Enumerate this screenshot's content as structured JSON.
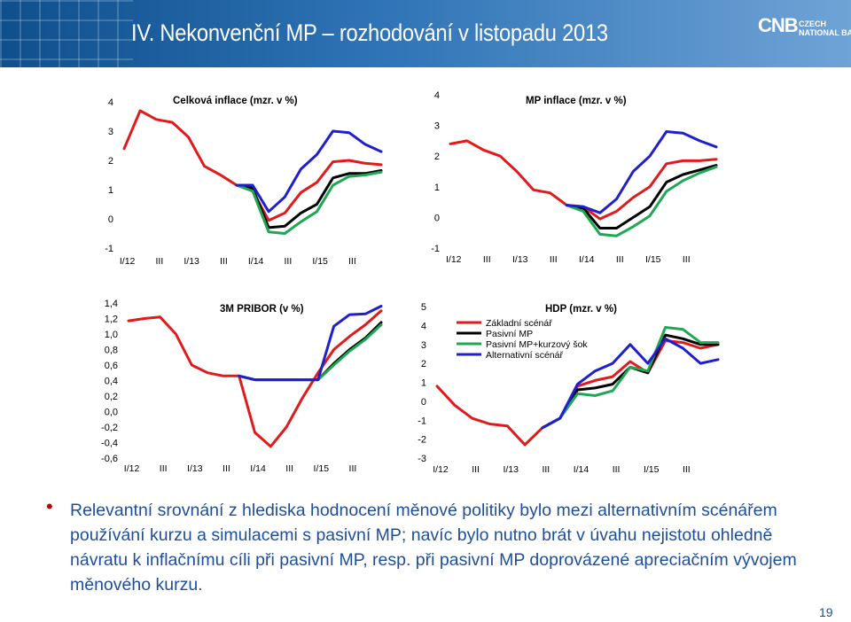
{
  "slide": {
    "title": "IV. Nekonvenční MP – rozhodování v listopadu 2013",
    "logo_mark": "CNB",
    "logo_line1": "CZECH",
    "logo_line2": "NATIONAL BANK",
    "body_text": "Relevantní srovnání z hlediska hodnocení měnové politiky bylo mezi alternativním scénářem používání kurzu a simulacemi s pasivní MP; navíc bylo nutno brát v úvahu nejistotu ohledně návratu k inflačnímu cíli při pasivní MP, resp. při pasivní MP doprovázené apreciačním vývojem měnového kurzu.",
    "page_number": "19",
    "colors": {
      "red": "#e31a1c",
      "black": "#000000",
      "green": "#1ea854",
      "blue": "#1f1fcf",
      "accent": "#c00000",
      "text": "#1f4e99"
    }
  },
  "chart_data": [
    {
      "type": "line",
      "title": "Celková inflace (mzr. v %)",
      "ylim": [
        -1,
        4
      ],
      "yticks": [
        "4",
        "3",
        "2",
        "1",
        "0",
        "-1"
      ],
      "xticks": [
        "I/12",
        "III",
        "I/13",
        "III",
        "I/14",
        "III",
        "I/15",
        "III"
      ],
      "x_start": "I/12",
      "series": [
        {
          "color": "red",
          "values": [
            2.4,
            3.7,
            3.4,
            3.3,
            2.8,
            1.8,
            1.5,
            1.15,
            0.95,
            -0.05,
            0.2,
            0.9,
            1.25,
            1.95,
            2.0,
            1.9,
            1.85
          ]
        },
        {
          "color": "black",
          "offset": 7,
          "values": [
            1.15,
            1.05,
            -0.3,
            -0.25,
            0.2,
            0.5,
            1.4,
            1.55,
            1.55,
            1.65
          ]
        },
        {
          "color": "green",
          "offset": 7,
          "values": [
            1.15,
            0.95,
            -0.45,
            -0.5,
            -0.1,
            0.25,
            1.15,
            1.45,
            1.5,
            1.6
          ]
        },
        {
          "color": "blue",
          "offset": 7,
          "values": [
            1.15,
            1.15,
            0.25,
            0.75,
            1.7,
            2.2,
            3.0,
            2.95,
            2.55,
            2.3
          ]
        }
      ]
    },
    {
      "type": "line",
      "title": "MP inflace (mzr. v %)",
      "ylim": [
        -1,
        4
      ],
      "yticks": [
        "4",
        "3",
        "2",
        "1",
        "0",
        "-1"
      ],
      "xticks": [
        "I/12",
        "III",
        "I/13",
        "III",
        "I/14",
        "III",
        "I/15",
        "III"
      ],
      "x_start": "I/12",
      "series": [
        {
          "color": "red",
          "values": [
            2.4,
            2.5,
            2.2,
            2.0,
            1.5,
            0.9,
            0.8,
            0.4,
            0.35,
            -0.05,
            0.2,
            0.65,
            1.0,
            1.75,
            1.85,
            1.85,
            1.9
          ]
        },
        {
          "color": "black",
          "offset": 7,
          "values": [
            0.4,
            0.3,
            -0.35,
            -0.35,
            0.0,
            0.35,
            1.15,
            1.4,
            1.55,
            1.7
          ]
        },
        {
          "color": "green",
          "offset": 7,
          "values": [
            0.4,
            0.2,
            -0.55,
            -0.6,
            -0.3,
            0.05,
            0.85,
            1.2,
            1.45,
            1.65
          ]
        },
        {
          "color": "blue",
          "offset": 7,
          "values": [
            0.4,
            0.35,
            0.15,
            0.6,
            1.5,
            2.0,
            2.8,
            2.75,
            2.5,
            2.3
          ]
        }
      ]
    },
    {
      "type": "line",
      "title": "3M PRIBOR (v %)",
      "ylim": [
        -0.6,
        1.4
      ],
      "yticks": [
        "1,4",
        "1,2",
        "1,0",
        "0,8",
        "0,6",
        "0,4",
        "0,2",
        "0,0",
        "-0,2",
        "-0,4",
        "-0,6"
      ],
      "xticks": [
        "I/12",
        "III",
        "I/13",
        "III",
        "I/14",
        "III",
        "I/15",
        "III"
      ],
      "x_start": "I/12",
      "series": [
        {
          "color": "red",
          "values": [
            1.17,
            1.2,
            1.22,
            1.0,
            0.6,
            0.5,
            0.46,
            0.46,
            -0.27,
            -0.45,
            -0.2,
            0.17,
            0.5,
            0.8,
            0.97,
            1.12,
            1.3
          ]
        },
        {
          "color": "black",
          "offset": 7,
          "values": [
            0.46,
            0.41,
            0.41,
            0.41,
            0.41,
            0.41,
            0.62,
            0.8,
            0.95,
            1.15
          ]
        },
        {
          "color": "green",
          "offset": 7,
          "values": [
            0.46,
            0.41,
            0.41,
            0.41,
            0.41,
            0.41,
            0.6,
            0.78,
            0.93,
            1.12
          ]
        },
        {
          "color": "blue",
          "offset": 7,
          "values": [
            0.46,
            0.41,
            0.41,
            0.41,
            0.41,
            0.41,
            1.1,
            1.25,
            1.26,
            1.36
          ]
        }
      ]
    },
    {
      "type": "line",
      "title": "HDP (mzr. v %)",
      "ylim": [
        -3,
        5
      ],
      "yticks": [
        "5",
        "4",
        "3",
        "2",
        "1",
        "0",
        "-1",
        "-2",
        "-3"
      ],
      "xticks": [
        "I/12",
        "III",
        "I/13",
        "III",
        "I/14",
        "III",
        "I/15",
        "III"
      ],
      "x_start": "I/12",
      "legend": [
        "Základní scénář",
        "Pasivní MP",
        "Pasivní MP+kurzový šok",
        "Alternativní scénář"
      ],
      "series": [
        {
          "color": "red",
          "values": [
            0.8,
            -0.2,
            -0.9,
            -1.2,
            -1.3,
            -2.3,
            -1.4,
            -0.9,
            0.8,
            1.1,
            1.3,
            2.1,
            1.5,
            3.2,
            3.1,
            2.8,
            3.0
          ]
        },
        {
          "color": "black",
          "offset": 6,
          "values": [
            -1.4,
            -0.9,
            0.6,
            0.7,
            0.9,
            1.8,
            1.5,
            3.5,
            3.3,
            3.0,
            3.0
          ]
        },
        {
          "color": "green",
          "offset": 6,
          "values": [
            -1.4,
            -0.9,
            0.4,
            0.3,
            0.55,
            1.8,
            1.6,
            3.9,
            3.8,
            3.1,
            3.1
          ]
        },
        {
          "color": "blue",
          "offset": 6,
          "values": [
            -1.4,
            -0.9,
            0.9,
            1.6,
            2.0,
            3.0,
            2.0,
            3.3,
            2.8,
            2.0,
            2.2
          ]
        }
      ]
    }
  ]
}
